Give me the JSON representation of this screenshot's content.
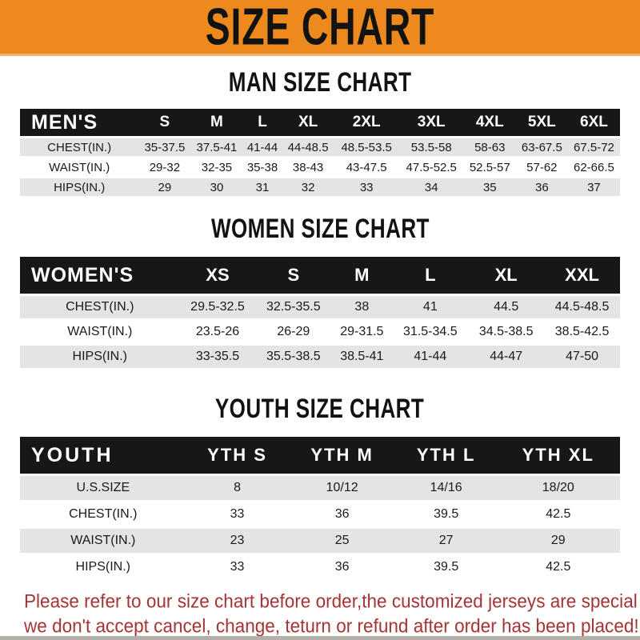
{
  "banner": {
    "title": "SIZE CHART"
  },
  "sections": [
    {
      "id": "men",
      "heading": "MAN SIZE CHART",
      "header_label": "MEN'S",
      "columns": [
        "S",
        "M",
        "L",
        "XL",
        "2XL",
        "3XL",
        "4XL",
        "5XL",
        "6XL"
      ],
      "rows": [
        {
          "label": "CHEST(IN.)",
          "values": [
            "35-37.5",
            "37.5-41",
            "41-44",
            "44-48.5",
            "48.5-53.5",
            "53.5-58",
            "58-63",
            "63-67.5",
            "67.5-72"
          ]
        },
        {
          "label": "WAIST(IN.)",
          "values": [
            "29-32",
            "32-35",
            "35-38",
            "38-43",
            "43-47.5",
            "47.5-52.5",
            "52.5-57",
            "57-62",
            "62-66.5"
          ]
        },
        {
          "label": "HIPS(IN.)",
          "values": [
            "29",
            "30",
            "31",
            "32",
            "33",
            "34",
            "35",
            "36",
            "37"
          ]
        }
      ]
    },
    {
      "id": "women",
      "heading": "WOMEN SIZE CHART",
      "header_label": "WOMEN'S",
      "columns": [
        "XS",
        "S",
        "M",
        "L",
        "XL",
        "XXL"
      ],
      "rows": [
        {
          "label": "CHEST(IN.)",
          "values": [
            "29.5-32.5",
            "32.5-35.5",
            "38",
            "41",
            "44.5",
            "44.5-48.5"
          ]
        },
        {
          "label": "WAIST(IN.)",
          "values": [
            "23.5-26",
            "26-29",
            "29-31.5",
            "31.5-34.5",
            "34.5-38.5",
            "38.5-42.5"
          ]
        },
        {
          "label": "HIPS(IN.)",
          "values": [
            "33-35.5",
            "35.5-38.5",
            "38.5-41",
            "41-44",
            "44-47",
            "47-50"
          ]
        }
      ]
    },
    {
      "id": "youth",
      "heading": "YOUTH SIZE CHART",
      "header_label": "YOUTH",
      "columns": [
        "YTH S",
        "YTH M",
        "YTH L",
        "YTH XL"
      ],
      "rows": [
        {
          "label": "U.S.SIZE",
          "values": [
            "8",
            "10/12",
            "14/16",
            "18/20"
          ]
        },
        {
          "label": "CHEST(IN.)",
          "values": [
            "33",
            "36",
            "39.5",
            "42.5"
          ]
        },
        {
          "label": "WAIST(IN.)",
          "values": [
            "23",
            "25",
            "27",
            "29"
          ]
        },
        {
          "label": "HIPS(IN.)",
          "values": [
            "33",
            "36",
            "39.5",
            "42.5"
          ]
        }
      ]
    }
  ],
  "footer": {
    "line1": "Please refer to our size chart before order,the customized jerseys are special products,",
    "line2": "we don't accept cancel, change, teturn or refund after order has been placed!"
  },
  "colors": {
    "banner_bg": "#ec8a1e",
    "header_bar_bg": "#171717",
    "row_gray": "#e4e4e4",
    "footer_red": "#a63434",
    "bottom_strip": "#b3b0ab"
  }
}
